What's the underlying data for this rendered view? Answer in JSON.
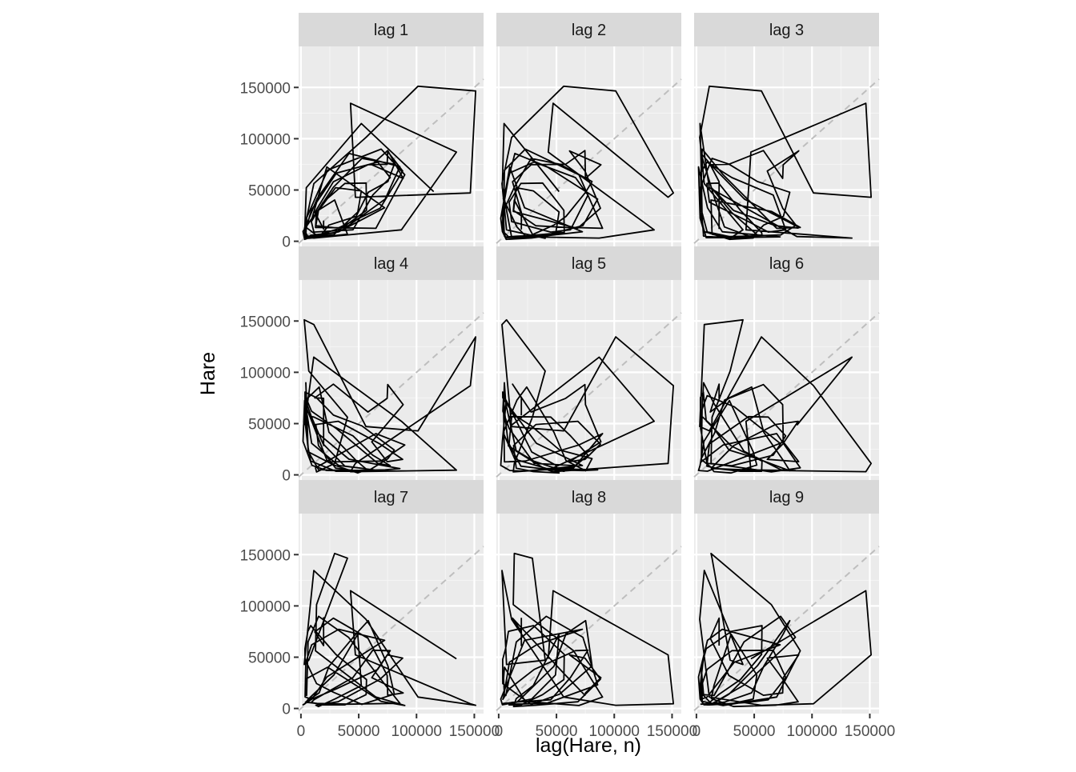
{
  "chart_data": {
    "type": "line",
    "facet_type": "lag plot grid",
    "xlabel": "lag(Hare, n)",
    "ylabel": "Hare",
    "xlim": [
      -2000,
      158000
    ],
    "ylim": [
      -5000,
      190000
    ],
    "x_ticks": [
      0,
      50000,
      100000,
      150000
    ],
    "y_ticks": [
      0,
      50000,
      100000,
      150000
    ],
    "x_tick_labels": [
      "0",
      "50000",
      "100000",
      "150000"
    ],
    "y_tick_labels": [
      "0",
      "50000",
      "100000",
      "150000"
    ],
    "reference_line": "identity (y = x), dashed grey",
    "grid": true,
    "background": "#EBEBEB",
    "strip_background": "#D9D9D9",
    "line_color": "#000000",
    "reference_color": "#BEBEBE",
    "series_name": "Hare",
    "series_values": [
      19580,
      19600,
      19610,
      11990,
      28040,
      58000,
      74600,
      75090,
      88480,
      61280,
      74670,
      88060,
      68510,
      32190,
      12860,
      15160,
      30030,
      52230,
      49160,
      28560,
      6520,
      3200,
      1830,
      9580,
      22370,
      72420,
      32710,
      9300,
      4250,
      3590,
      9140,
      30710,
      66440,
      77230,
      62110,
      45050,
      11250,
      8990,
      19170,
      38020,
      56370,
      56740,
      30180,
      8490,
      5940,
      3480,
      3520,
      13510,
      28160,
      52710,
      80780,
      75210,
      58260,
      47780,
      24250,
      15800,
      3950,
      13980,
      41590,
      85640,
      72850,
      41120,
      15280,
      6160,
      4910,
      4210,
      5030,
      23080,
      69440,
      89840,
      64850,
      12640,
      13500,
      29160,
      40250,
      6820,
      2880,
      11140,
      56230,
      101240,
      151120,
      146540,
      47120,
      42880,
      134520,
      86930,
      11120,
      3150,
      4620,
      52220,
      114840,
      48410
    ],
    "panels": [
      {
        "label": "lag 1",
        "lag": 1
      },
      {
        "label": "lag 2",
        "lag": 2
      },
      {
        "label": "lag 3",
        "lag": 3
      },
      {
        "label": "lag 4",
        "lag": 4
      },
      {
        "label": "lag 5",
        "lag": 5
      },
      {
        "label": "lag 6",
        "lag": 6
      },
      {
        "label": "lag 7",
        "lag": 7
      },
      {
        "label": "lag 8",
        "lag": 8
      },
      {
        "label": "lag 9",
        "lag": 9
      }
    ]
  }
}
